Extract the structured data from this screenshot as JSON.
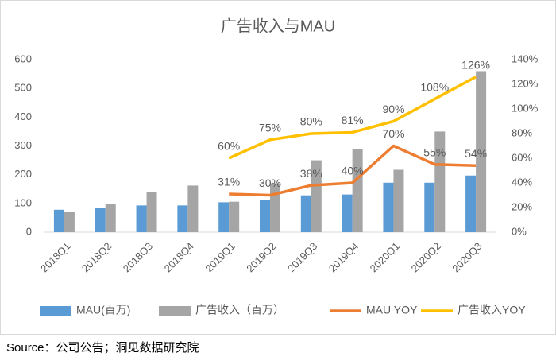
{
  "chart_data": {
    "type": "bar",
    "title": "广告收入与MAU",
    "categories": [
      "2018Q1",
      "2018Q2",
      "2018Q3",
      "2018Q4",
      "2019Q1",
      "2019Q2",
      "2019Q3",
      "2019Q4",
      "2020Q1",
      "2020Q2",
      "2020Q3"
    ],
    "series": [
      {
        "name": "MAU(百万)",
        "type": "bar",
        "color": "#5b9bd5",
        "values": [
          78,
          85,
          93,
          93,
          104,
          112,
          128,
          131,
          172,
          172,
          197
        ]
      },
      {
        "name": "广告收入（百万）",
        "type": "bar",
        "color": "#a5a5a5",
        "values": [
          72,
          98,
          140,
          162,
          106,
          170,
          250,
          290,
          217,
          350,
          560
        ]
      },
      {
        "name": "MAU YOY",
        "type": "line",
        "axis": "y2",
        "color": "#ed7d31",
        "values": [
          null,
          null,
          null,
          null,
          31,
          30,
          38,
          40,
          70,
          55,
          54
        ],
        "value_labels": [
          null,
          null,
          null,
          null,
          "31%",
          "30%",
          "38%",
          "40%",
          "70%",
          "55%",
          "54%"
        ]
      },
      {
        "name": "广告收入YOY",
        "type": "line",
        "axis": "y2",
        "color": "#ffc000",
        "values": [
          null,
          null,
          null,
          null,
          60,
          75,
          80,
          81,
          90,
          108,
          126
        ],
        "value_labels": [
          null,
          null,
          null,
          null,
          "60%",
          "75%",
          "80%",
          "81%",
          "90%",
          "108%",
          "126%"
        ]
      }
    ],
    "ylim": [
      0,
      600
    ],
    "yticks": [
      0,
      100,
      200,
      300,
      400,
      500,
      600
    ],
    "y2lim": [
      0,
      140
    ],
    "y2ticks": [
      {
        "value": 0,
        "label": "0%"
      },
      {
        "value": 20,
        "label": "20%"
      },
      {
        "value": 40,
        "label": "40%"
      },
      {
        "value": 60,
        "label": "60%"
      },
      {
        "value": 80,
        "label": "80%"
      },
      {
        "value": 100,
        "label": "100%"
      },
      {
        "value": 120,
        "label": "120%"
      },
      {
        "value": 140,
        "label": "140%"
      }
    ],
    "legend": "bottom",
    "source": "Source：公司公告；洞见数据研究院"
  }
}
